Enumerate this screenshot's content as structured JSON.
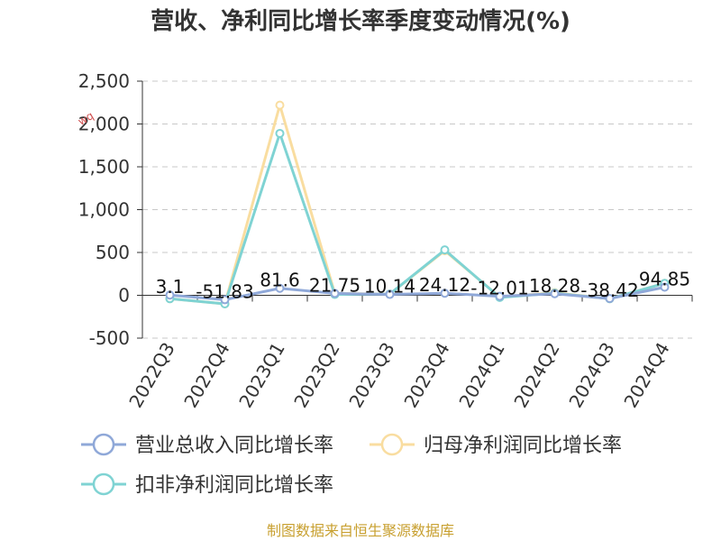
{
  "chart_data": {
    "type": "line",
    "title": "营收、净利同比增长率季度变动情况(%)",
    "categories": [
      "2022Q3",
      "2022Q4",
      "2023Q1",
      "2023Q2",
      "2023Q3",
      "2023Q4",
      "2024Q1",
      "2024Q2",
      "2024Q3",
      "2024Q4"
    ],
    "ylim": [
      -500,
      2500
    ],
    "yticks": [
      -500,
      0,
      500,
      1000,
      1500,
      2000,
      2500
    ],
    "ytick_labels": [
      "-500",
      "0",
      "500",
      "1,000",
      "1,500",
      "2,000",
      "2,500"
    ],
    "grid": true,
    "legend_position": "bottom",
    "series": [
      {
        "name": "营业总收入同比增长率",
        "color": "#8fa8d8",
        "values": [
          3.1,
          -51.83,
          81.6,
          21.75,
          10.14,
          24.12,
          -12.01,
          18.28,
          -38.42,
          94.85
        ]
      },
      {
        "name": "归母净利润同比增长率",
        "color": "#f9dda0",
        "values": [
          -40,
          -100,
          2220,
          20,
          15,
          520,
          -20,
          30,
          -40,
          140
        ]
      },
      {
        "name": "扣非净利润同比增长率",
        "color": "#7fd3d3",
        "values": [
          -40,
          -100,
          1890,
          10,
          15,
          530,
          -25,
          25,
          -40,
          140
        ]
      }
    ],
    "data_labels": [
      "3.1",
      "-51.83",
      "81.6",
      "21.75",
      "10.14",
      "24.12",
      "-12.01",
      "18.28",
      "-38.42",
      "94.85"
    ],
    "source": "制图数据来自恒生聚源数据库",
    "watermark": "wq"
  }
}
